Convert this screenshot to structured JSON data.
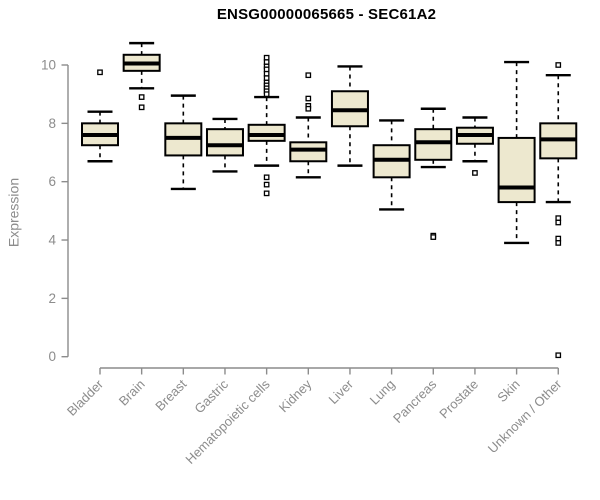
{
  "page": {
    "background": "#ffffff"
  },
  "chart_data": {
    "type": "boxplot",
    "title": "ENSG00000065665 - SEC61A2",
    "xlabel": "",
    "ylabel": "Expression",
    "ylim": [
      0,
      10.8
    ],
    "yticks": [
      0,
      2,
      4,
      6,
      8,
      10
    ],
    "grid": false,
    "legend": false,
    "categories": [
      "Bladder",
      "Brain",
      "Breast",
      "Gastric",
      "Hematopoietic cells",
      "Kidney",
      "Liver",
      "Lung",
      "Pancreas",
      "Prostate",
      "Skin",
      "Unknown / Other"
    ],
    "series": [
      {
        "name": "Bladder",
        "whisker_low": 6.7,
        "q1": 7.25,
        "median": 7.6,
        "q3": 8.0,
        "whisker_high": 8.4,
        "outliers": [
          9.75
        ]
      },
      {
        "name": "Brain",
        "whisker_low": 9.2,
        "q1": 9.8,
        "median": 10.05,
        "q3": 10.35,
        "whisker_high": 10.75,
        "outliers": [
          8.9,
          8.55
        ]
      },
      {
        "name": "Breast",
        "whisker_low": 5.75,
        "q1": 6.9,
        "median": 7.5,
        "q3": 8.0,
        "whisker_high": 8.95,
        "outliers": []
      },
      {
        "name": "Gastric",
        "whisker_low": 6.35,
        "q1": 6.9,
        "median": 7.25,
        "q3": 7.8,
        "whisker_high": 8.15,
        "outliers": []
      },
      {
        "name": "Hematopoietic cells",
        "whisker_low": 6.55,
        "q1": 7.4,
        "median": 7.6,
        "q3": 7.95,
        "whisker_high": 8.9,
        "outliers": [
          10.25,
          10.1,
          9.95,
          9.85,
          9.7,
          9.55,
          9.4,
          9.3,
          9.2,
          9.1,
          9.0,
          6.15,
          5.9,
          5.6
        ]
      },
      {
        "name": "Kidney",
        "whisker_low": 6.15,
        "q1": 6.7,
        "median": 7.1,
        "q3": 7.35,
        "whisker_high": 8.2,
        "outliers": [
          9.65,
          8.85,
          8.6,
          8.5
        ]
      },
      {
        "name": "Liver",
        "whisker_low": 6.55,
        "q1": 7.9,
        "median": 8.45,
        "q3": 9.1,
        "whisker_high": 9.95,
        "outliers": []
      },
      {
        "name": "Lung",
        "whisker_low": 5.05,
        "q1": 6.15,
        "median": 6.75,
        "q3": 7.25,
        "whisker_high": 8.1,
        "outliers": []
      },
      {
        "name": "Pancreas",
        "whisker_low": 6.5,
        "q1": 6.75,
        "median": 7.35,
        "q3": 7.8,
        "whisker_high": 8.5,
        "outliers": [
          4.15,
          4.1
        ]
      },
      {
        "name": "Prostate",
        "whisker_low": 6.7,
        "q1": 7.3,
        "median": 7.6,
        "q3": 7.85,
        "whisker_high": 8.2,
        "outliers": [
          6.3
        ]
      },
      {
        "name": "Skin",
        "whisker_low": 3.9,
        "q1": 5.3,
        "median": 5.8,
        "q3": 7.5,
        "whisker_high": 10.1,
        "outliers": []
      },
      {
        "name": "Unknown / Other",
        "whisker_low": 5.3,
        "q1": 6.8,
        "median": 7.45,
        "q3": 8.0,
        "whisker_high": 9.65,
        "outliers": [
          10.0,
          4.75,
          4.6,
          4.05,
          3.9,
          0.05
        ]
      }
    ],
    "style": {
      "box_fill": "#EDE8CF",
      "box_stroke": "#000000",
      "median_color": "#000000",
      "outlier_fill": "#ffffff",
      "axis_color": "#8C8C8C",
      "title_color": "#000000"
    }
  }
}
